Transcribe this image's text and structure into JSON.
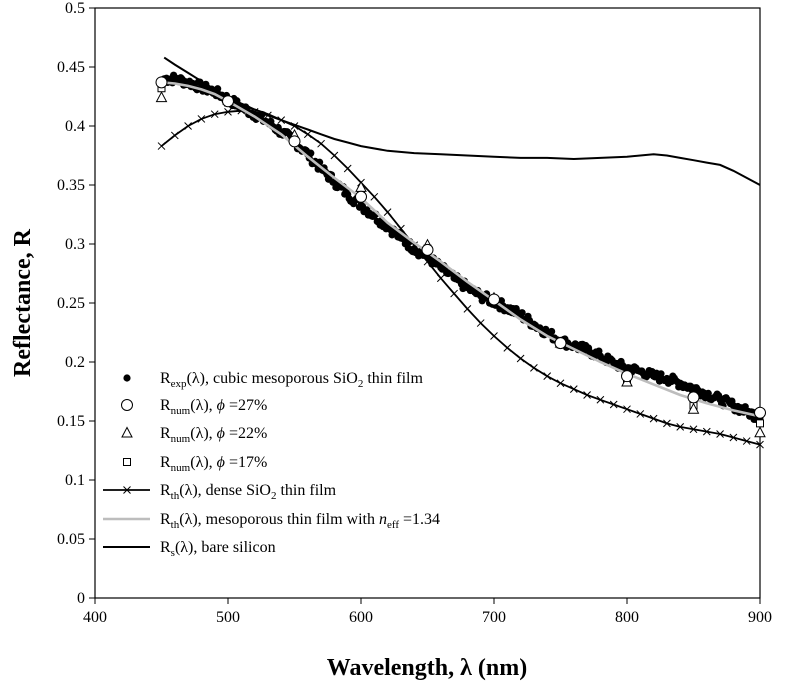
{
  "chart_data": {
    "type": "line",
    "xlabel": "Wavelength, λ (nm)",
    "ylabel": "Reflectance, R",
    "xlim": [
      400,
      900
    ],
    "ylim": [
      0,
      0.5
    ],
    "x_ticks": [
      "400",
      "500",
      "600",
      "700",
      "800",
      "900"
    ],
    "y_ticks": [
      "0",
      "0.05",
      "0.1",
      "0.15",
      "0.2",
      "0.25",
      "0.3",
      "0.35",
      "0.4",
      "0.45",
      "0.5"
    ],
    "grid": false,
    "legend_position": "bottom-left",
    "series": [
      {
        "key": "exp",
        "legend": {
          "base": "R",
          "sub": "exp",
          "rest": "(λ), cubic mesoporous SiO",
          "sub2": "2",
          "rest2": " thin film"
        },
        "marker": "dot",
        "color": "#000000",
        "x": [
          452,
          460,
          470,
          480,
          490,
          500,
          510,
          520,
          530,
          540,
          550,
          560,
          570,
          580,
          590,
          600,
          610,
          620,
          630,
          640,
          650,
          660,
          670,
          680,
          690,
          700,
          710,
          720,
          730,
          740,
          750,
          760,
          770,
          780,
          790,
          800,
          810,
          820,
          830,
          840,
          850,
          860,
          870,
          880,
          890,
          900
        ],
        "y": [
          0.44,
          0.44,
          0.437,
          0.433,
          0.429,
          0.423,
          0.416,
          0.41,
          0.403,
          0.395,
          0.387,
          0.376,
          0.364,
          0.353,
          0.342,
          0.333,
          0.324,
          0.315,
          0.305,
          0.296,
          0.289,
          0.28,
          0.271,
          0.263,
          0.256,
          0.251,
          0.246,
          0.24,
          0.232,
          0.225,
          0.218,
          0.214,
          0.21,
          0.205,
          0.199,
          0.195,
          0.192,
          0.188,
          0.186,
          0.182,
          0.178,
          0.173,
          0.168,
          0.163,
          0.158,
          0.153
        ]
      },
      {
        "key": "num27",
        "legend": {
          "base": "R",
          "sub": "num",
          "rest": "(λ), ",
          "phi": "ϕ",
          "rest2": " =27%"
        },
        "marker": "circle",
        "color": "#000000",
        "x": [
          450,
          500,
          550,
          600,
          650,
          700,
          750,
          800,
          850,
          900
        ],
        "y": [
          0.437,
          0.421,
          0.387,
          0.34,
          0.295,
          0.253,
          0.216,
          0.188,
          0.17,
          0.157
        ]
      },
      {
        "key": "num22",
        "legend": {
          "base": "R",
          "sub": "num",
          "rest": "(λ), ",
          "phi": "ϕ",
          "rest2": " =22%"
        },
        "marker": "triangle",
        "color": "#000000",
        "x": [
          450,
          500,
          550,
          600,
          650,
          700,
          750,
          800,
          850,
          900
        ],
        "y": [
          0.424,
          0.422,
          0.392,
          0.348,
          0.299,
          0.254,
          0.216,
          0.183,
          0.16,
          0.14
        ]
      },
      {
        "key": "num17",
        "legend": {
          "base": "R",
          "sub": "num",
          "rest": "(λ), ",
          "phi": "ϕ",
          "rest2": " =17%"
        },
        "marker": "square",
        "color": "#000000",
        "x": [
          450,
          500,
          550,
          600,
          650,
          700,
          750,
          800,
          850,
          900
        ],
        "y": [
          0.432,
          0.42,
          0.387,
          0.342,
          0.296,
          0.253,
          0.215,
          0.184,
          0.163,
          0.148
        ]
      },
      {
        "key": "dense",
        "legend": {
          "base": "R",
          "sub": "th",
          "rest": "(λ), dense SiO",
          "sub2": "2",
          "rest2": " thin film"
        },
        "marker": "x-line",
        "color": "#000000",
        "x": [
          450,
          460,
          470,
          480,
          490,
          500,
          510,
          520,
          530,
          540,
          550,
          560,
          570,
          580,
          590,
          600,
          610,
          620,
          630,
          640,
          650,
          660,
          670,
          680,
          690,
          700,
          710,
          720,
          730,
          740,
          750,
          760,
          770,
          780,
          790,
          800,
          810,
          820,
          830,
          840,
          850,
          860,
          870,
          880,
          890,
          900
        ],
        "y": [
          0.383,
          0.392,
          0.4,
          0.406,
          0.41,
          0.412,
          0.413,
          0.412,
          0.409,
          0.405,
          0.4,
          0.393,
          0.385,
          0.375,
          0.364,
          0.352,
          0.34,
          0.327,
          0.313,
          0.299,
          0.285,
          0.271,
          0.258,
          0.245,
          0.233,
          0.222,
          0.212,
          0.203,
          0.195,
          0.188,
          0.182,
          0.177,
          0.172,
          0.168,
          0.164,
          0.16,
          0.156,
          0.152,
          0.148,
          0.145,
          0.143,
          0.141,
          0.139,
          0.136,
          0.133,
          0.13
        ]
      },
      {
        "key": "meso",
        "legend": {
          "base": "R",
          "sub": "th",
          "rest": "(λ), mesoporous thin film with ",
          "neff": "n",
          "neffsub": "eff",
          "rest2": " =1.34"
        },
        "marker": "gray-line",
        "color": "#bdbdbd",
        "x": [
          450,
          460,
          470,
          480,
          490,
          500,
          520,
          540,
          560,
          580,
          600,
          620,
          640,
          660,
          680,
          700,
          720,
          740,
          760,
          780,
          800,
          820,
          840,
          860,
          880,
          900
        ],
        "y": [
          0.437,
          0.436,
          0.434,
          0.431,
          0.427,
          0.421,
          0.408,
          0.393,
          0.374,
          0.356,
          0.339,
          0.318,
          0.301,
          0.285,
          0.268,
          0.252,
          0.236,
          0.222,
          0.211,
          0.2,
          0.19,
          0.181,
          0.172,
          0.165,
          0.159,
          0.154
        ]
      },
      {
        "key": "bare",
        "legend": {
          "base": "R",
          "sub": "s",
          "rest": "(λ), bare silicon"
        },
        "marker": "black-line",
        "color": "#000000",
        "x": [
          452,
          460,
          470,
          480,
          490,
          500,
          510,
          520,
          530,
          540,
          550,
          560,
          570,
          580,
          590,
          600,
          620,
          640,
          660,
          680,
          700,
          720,
          740,
          760,
          780,
          800,
          820,
          830,
          840,
          850,
          860,
          870,
          880,
          890,
          900
        ],
        "y": [
          0.458,
          0.452,
          0.445,
          0.438,
          0.431,
          0.425,
          0.419,
          0.414,
          0.41,
          0.405,
          0.401,
          0.397,
          0.393,
          0.389,
          0.386,
          0.383,
          0.379,
          0.377,
          0.376,
          0.375,
          0.374,
          0.373,
          0.373,
          0.372,
          0.373,
          0.374,
          0.376,
          0.375,
          0.373,
          0.371,
          0.369,
          0.367,
          0.362,
          0.356,
          0.35
        ]
      }
    ]
  }
}
